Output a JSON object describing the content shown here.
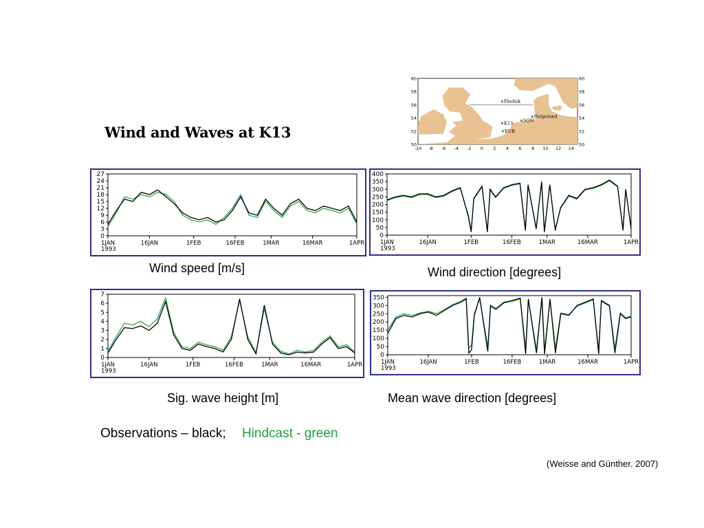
{
  "page_title": "Wind and Waves at K13",
  "legend": {
    "observations": "Observations – black;",
    "hindcast": "Hindcast - green"
  },
  "citation": "(Weisse and Günther. 2007)",
  "colors": {
    "observations": "#000000",
    "hindcast": "#2ea84a",
    "panel_border": "#2b2f8a",
    "land": "#e8c290",
    "station": "#2ea84a"
  },
  "map": {
    "lat_ticks": [
      "60",
      "58",
      "56",
      "54",
      "52",
      "50"
    ],
    "lon_ticks": [
      "-10",
      "-8",
      "-6",
      "-4",
      "-2",
      "0",
      "2",
      "4",
      "6",
      "8",
      "10",
      "12",
      "14"
    ],
    "stations": [
      {
        "name": "Ekofisk",
        "lon": 3.2,
        "lat": 56.5
      },
      {
        "name": "Helgoland",
        "lon": 7.9,
        "lat": 54.2
      },
      {
        "name": "SON",
        "lon": 6.2,
        "lat": 53.6
      },
      {
        "name": "K13",
        "lon": 3.2,
        "lat": 53.2
      },
      {
        "name": "EUR",
        "lon": 3.3,
        "lat": 52.0
      }
    ]
  },
  "chart_data": [
    {
      "type": "line",
      "caption": "Wind speed [m/s]",
      "x_tick_labels": [
        "1JAN\n1993",
        "16JAN",
        "1FEB",
        "16FEB",
        "1MAR",
        "16MAR",
        "1APR"
      ],
      "x_tick_days": [
        0,
        15,
        31,
        46,
        59,
        74,
        90
      ],
      "yticks": [
        0,
        3,
        6,
        9,
        12,
        15,
        18,
        21,
        24,
        27
      ],
      "ylim": [
        0,
        27
      ],
      "xlim": [
        0,
        90
      ],
      "series": [
        {
          "name": "Observations",
          "x": [
            0,
            3,
            6,
            9,
            12,
            15,
            18,
            21,
            24,
            27,
            30,
            33,
            36,
            39,
            42,
            45,
            48,
            51,
            54,
            57,
            60,
            63,
            66,
            69,
            72,
            75,
            78,
            81,
            84,
            87,
            90
          ],
          "values": [
            5,
            11,
            16,
            15,
            19,
            18,
            20,
            17,
            14,
            10,
            8,
            7,
            8,
            6,
            7,
            11,
            17,
            10,
            9,
            16,
            12,
            9,
            14,
            16,
            12,
            11,
            13,
            12,
            11,
            13,
            6
          ]
        },
        {
          "name": "Hindcast",
          "x": [
            0,
            3,
            6,
            9,
            12,
            15,
            18,
            21,
            24,
            27,
            30,
            33,
            36,
            39,
            42,
            45,
            48,
            51,
            54,
            57,
            60,
            63,
            66,
            69,
            72,
            75,
            78,
            81,
            84,
            87,
            90
          ],
          "values": [
            4,
            10,
            17,
            16,
            18,
            17,
            19,
            18,
            15,
            9,
            7,
            6,
            7,
            5,
            8,
            12,
            18,
            9,
            8,
            15,
            11,
            8,
            13,
            15,
            11,
            10,
            12,
            11,
            10,
            12,
            5
          ]
        }
      ]
    },
    {
      "type": "line",
      "caption": "Wind direction [degrees]",
      "x_tick_labels": [
        "1JAN\n1993",
        "16JAN",
        "1FEB",
        "16FEB",
        "1MAR",
        "16MAR",
        "1APR"
      ],
      "x_tick_days": [
        0,
        15,
        31,
        46,
        59,
        74,
        90
      ],
      "yticks": [
        0,
        50,
        100,
        150,
        200,
        250,
        300,
        350,
        400
      ],
      "ylim": [
        0,
        400
      ],
      "xlim": [
        0,
        90
      ],
      "series": [
        {
          "name": "Observations",
          "x": [
            0,
            3,
            6,
            9,
            12,
            15,
            18,
            21,
            24,
            27,
            30,
            31,
            32,
            35,
            37,
            38,
            40,
            43,
            46,
            49,
            51,
            52,
            55,
            57,
            58,
            60,
            62,
            64,
            67,
            70,
            73,
            76,
            79,
            82,
            85,
            87,
            88,
            90
          ],
          "values": [
            230,
            250,
            260,
            250,
            270,
            270,
            250,
            260,
            290,
            310,
            120,
            20,
            240,
            320,
            20,
            300,
            250,
            310,
            330,
            340,
            30,
            330,
            40,
            350,
            20,
            330,
            30,
            180,
            260,
            240,
            300,
            310,
            330,
            360,
            320,
            30,
            300,
            40
          ]
        },
        {
          "name": "Hindcast",
          "x": [
            0,
            3,
            6,
            9,
            12,
            15,
            18,
            21,
            24,
            27,
            30,
            31,
            32,
            35,
            37,
            38,
            40,
            43,
            46,
            49,
            51,
            52,
            55,
            57,
            58,
            60,
            62,
            64,
            67,
            70,
            73,
            76,
            79,
            82,
            85,
            87,
            88,
            90
          ],
          "values": [
            225,
            245,
            255,
            245,
            265,
            265,
            245,
            255,
            285,
            305,
            130,
            30,
            235,
            315,
            30,
            295,
            245,
            305,
            325,
            335,
            40,
            325,
            50,
            345,
            30,
            325,
            40,
            175,
            255,
            235,
            295,
            305,
            325,
            355,
            315,
            40,
            295,
            50
          ]
        }
      ]
    },
    {
      "type": "line",
      "caption": "Sig. wave height [m]",
      "x_tick_labels": [
        "1JAN\n1993",
        "16JAN",
        "1FEB",
        "16FEB",
        "1MAR",
        "16MAR",
        "1APR"
      ],
      "x_tick_days": [
        0,
        15,
        31,
        46,
        59,
        74,
        90
      ],
      "yticks": [
        0,
        1,
        2,
        3,
        4,
        5,
        6,
        7
      ],
      "ylim": [
        0,
        7
      ],
      "xlim": [
        0,
        90
      ],
      "series": [
        {
          "name": "Observations",
          "x": [
            0,
            3,
            6,
            9,
            12,
            15,
            18,
            21,
            24,
            27,
            30,
            33,
            36,
            39,
            42,
            45,
            48,
            51,
            54,
            57,
            60,
            63,
            66,
            69,
            72,
            75,
            78,
            81,
            84,
            87,
            90
          ],
          "values": [
            0.5,
            2.0,
            3.3,
            3.2,
            3.5,
            3.0,
            3.8,
            6.2,
            2.5,
            1.0,
            0.8,
            1.5,
            1.2,
            1.0,
            0.6,
            2.0,
            6.5,
            2.0,
            0.4,
            5.8,
            1.5,
            0.5,
            0.3,
            0.6,
            0.5,
            0.6,
            1.5,
            2.2,
            1.0,
            1.2,
            0.5
          ]
        },
        {
          "name": "Hindcast",
          "x": [
            0,
            3,
            6,
            9,
            12,
            15,
            18,
            21,
            24,
            27,
            30,
            33,
            36,
            39,
            42,
            45,
            48,
            51,
            54,
            57,
            60,
            63,
            66,
            69,
            72,
            75,
            78,
            81,
            84,
            87,
            90
          ],
          "values": [
            0.7,
            2.3,
            3.8,
            3.6,
            4.0,
            3.4,
            4.3,
            6.6,
            2.8,
            1.2,
            1.0,
            1.7,
            1.4,
            1.2,
            0.8,
            2.3,
            6.3,
            2.3,
            0.5,
            5.4,
            1.7,
            0.7,
            0.4,
            0.8,
            0.6,
            0.8,
            1.7,
            2.4,
            1.2,
            1.4,
            0.6
          ]
        }
      ]
    },
    {
      "type": "line",
      "caption": "Mean wave direction [degrees]",
      "x_tick_labels": [
        "1JAN\n1993",
        "16JAN",
        "1FEB",
        "16FEB",
        "1MAR",
        "16MAR",
        "1APR"
      ],
      "x_tick_days": [
        0,
        15,
        31,
        46,
        59,
        74,
        90
      ],
      "yticks": [
        0,
        50,
        100,
        150,
        200,
        250,
        300,
        350
      ],
      "ylim": [
        0,
        360
      ],
      "xlim": [
        0,
        90
      ],
      "series": [
        {
          "name": "Observations",
          "x": [
            0,
            3,
            6,
            9,
            12,
            15,
            18,
            21,
            24,
            27,
            29,
            30,
            31,
            32,
            34,
            37,
            38,
            40,
            43,
            46,
            49,
            51,
            52,
            55,
            57,
            58,
            60,
            62,
            64,
            67,
            70,
            73,
            76,
            78,
            79,
            82,
            84,
            86,
            88,
            90
          ],
          "values": [
            130,
            220,
            240,
            230,
            250,
            260,
            240,
            270,
            300,
            320,
            340,
            10,
            30,
            240,
            350,
            20,
            300,
            280,
            320,
            330,
            345,
            5,
            340,
            10,
            350,
            5,
            340,
            10,
            250,
            240,
            300,
            320,
            340,
            5,
            330,
            300,
            10,
            250,
            220,
            230
          ]
        },
        {
          "name": "Hindcast",
          "x": [
            0,
            3,
            6,
            9,
            12,
            15,
            18,
            21,
            24,
            27,
            29,
            30,
            31,
            32,
            34,
            37,
            38,
            40,
            43,
            46,
            49,
            51,
            52,
            55,
            57,
            58,
            60,
            62,
            64,
            67,
            70,
            73,
            76,
            78,
            79,
            82,
            84,
            86,
            88,
            90
          ],
          "values": [
            150,
            230,
            250,
            240,
            255,
            265,
            250,
            275,
            305,
            325,
            345,
            40,
            60,
            250,
            340,
            50,
            290,
            275,
            315,
            325,
            340,
            40,
            335,
            30,
            345,
            30,
            335,
            40,
            255,
            245,
            295,
            315,
            335,
            30,
            325,
            295,
            40,
            255,
            225,
            235
          ]
        }
      ]
    }
  ]
}
